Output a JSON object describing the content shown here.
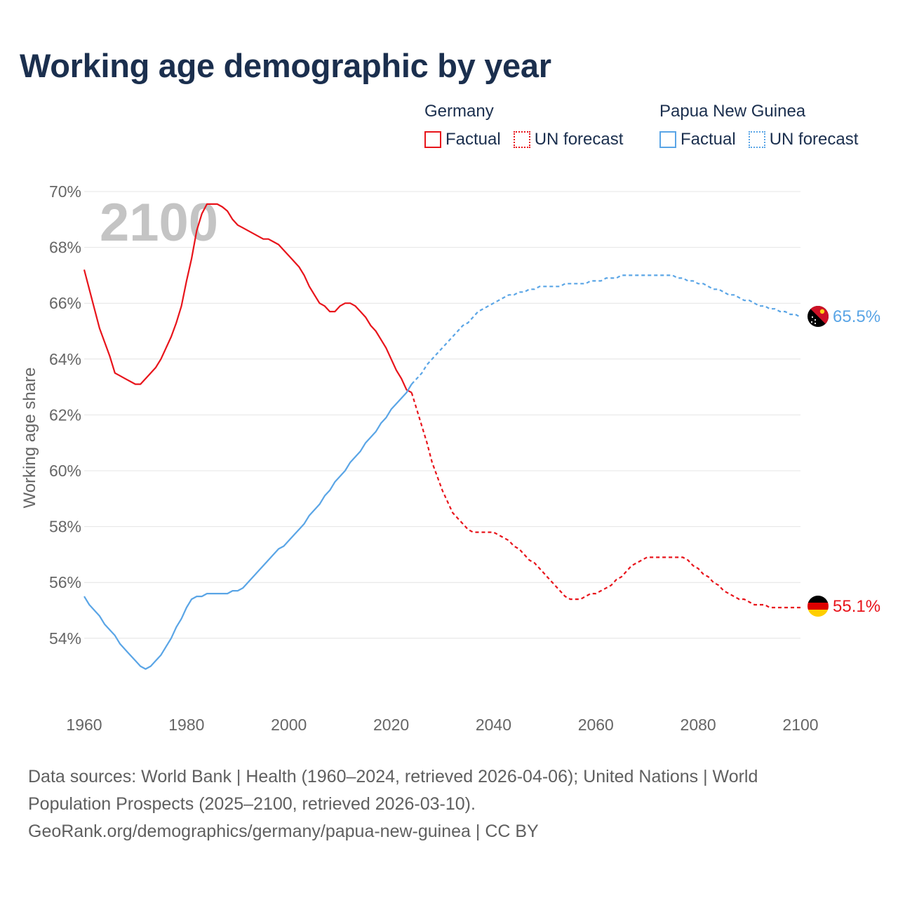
{
  "title": "Working age demographic by year",
  "legend": {
    "groups": [
      {
        "name": "Germany",
        "factual_label": "Factual",
        "forecast_label": "UN forecast"
      },
      {
        "name": "Papua New Guinea",
        "factual_label": "Factual",
        "forecast_label": "UN forecast"
      }
    ]
  },
  "watermark_year": "2100",
  "source": {
    "line1": "Data sources: World Bank | Health (1960–2024, retrieved 2026-04-06); United Nations | World",
    "line2": "Population Prospects (2025–2100, retrieved 2026-03-10).",
    "line3": "GeoRank.org/demographics/germany/papua-new-guinea | CC BY"
  },
  "chart_data": {
    "type": "line",
    "title": "Working age demographic by year",
    "xlabel": "",
    "ylabel": "Working age share",
    "xlim": [
      1960,
      2100
    ],
    "ylim": [
      52,
      70
    ],
    "x_ticks": [
      1960,
      1980,
      2000,
      2020,
      2040,
      2060,
      2080,
      2100
    ],
    "y_ticks": [
      54,
      56,
      58,
      60,
      62,
      64,
      66,
      68,
      70
    ],
    "y_tick_labels": [
      "54%",
      "56%",
      "58%",
      "60%",
      "62%",
      "64%",
      "66%",
      "68%",
      "70%"
    ],
    "grid": true,
    "factual_range": [
      1960,
      2024
    ],
    "forecast_range": [
      2024,
      2100
    ],
    "series": [
      {
        "name": "Germany",
        "color": "#e8141b",
        "end_label": "55.1%",
        "points": [
          [
            1960,
            67.2
          ],
          [
            1961,
            66.5
          ],
          [
            1962,
            65.8
          ],
          [
            1963,
            65.1
          ],
          [
            1964,
            64.6
          ],
          [
            1965,
            64.1
          ],
          [
            1966,
            63.5
          ],
          [
            1967,
            63.4
          ],
          [
            1968,
            63.3
          ],
          [
            1969,
            63.2
          ],
          [
            1970,
            63.1
          ],
          [
            1971,
            63.1
          ],
          [
            1972,
            63.3
          ],
          [
            1973,
            63.5
          ],
          [
            1974,
            63.7
          ],
          [
            1975,
            64.0
          ],
          [
            1976,
            64.4
          ],
          [
            1977,
            64.8
          ],
          [
            1978,
            65.3
          ],
          [
            1979,
            65.9
          ],
          [
            1980,
            66.8
          ],
          [
            1981,
            67.6
          ],
          [
            1982,
            68.6
          ],
          [
            1983,
            69.2
          ],
          [
            1984,
            69.55
          ],
          [
            1985,
            69.55
          ],
          [
            1986,
            69.55
          ],
          [
            1987,
            69.45
          ],
          [
            1988,
            69.3
          ],
          [
            1989,
            69.0
          ],
          [
            1990,
            68.8
          ],
          [
            1991,
            68.7
          ],
          [
            1992,
            68.6
          ],
          [
            1993,
            68.5
          ],
          [
            1994,
            68.4
          ],
          [
            1995,
            68.3
          ],
          [
            1996,
            68.3
          ],
          [
            1997,
            68.2
          ],
          [
            1998,
            68.1
          ],
          [
            1999,
            67.9
          ],
          [
            2000,
            67.7
          ],
          [
            2001,
            67.5
          ],
          [
            2002,
            67.3
          ],
          [
            2003,
            67.0
          ],
          [
            2004,
            66.6
          ],
          [
            2005,
            66.3
          ],
          [
            2006,
            66.0
          ],
          [
            2007,
            65.9
          ],
          [
            2008,
            65.7
          ],
          [
            2009,
            65.7
          ],
          [
            2010,
            65.9
          ],
          [
            2011,
            66.0
          ],
          [
            2012,
            66.0
          ],
          [
            2013,
            65.9
          ],
          [
            2014,
            65.7
          ],
          [
            2015,
            65.5
          ],
          [
            2016,
            65.2
          ],
          [
            2017,
            65.0
          ],
          [
            2018,
            64.7
          ],
          [
            2019,
            64.4
          ],
          [
            2020,
            64.0
          ],
          [
            2021,
            63.6
          ],
          [
            2022,
            63.3
          ],
          [
            2023,
            62.9
          ],
          [
            2024,
            62.8
          ],
          [
            2025,
            62.2
          ],
          [
            2026,
            61.6
          ],
          [
            2027,
            61.0
          ],
          [
            2028,
            60.3
          ],
          [
            2029,
            59.8
          ],
          [
            2030,
            59.3
          ],
          [
            2031,
            58.9
          ],
          [
            2032,
            58.5
          ],
          [
            2033,
            58.3
          ],
          [
            2034,
            58.1
          ],
          [
            2035,
            57.9
          ],
          [
            2036,
            57.8
          ],
          [
            2037,
            57.8
          ],
          [
            2038,
            57.8
          ],
          [
            2039,
            57.8
          ],
          [
            2040,
            57.8
          ],
          [
            2041,
            57.7
          ],
          [
            2042,
            57.6
          ],
          [
            2043,
            57.5
          ],
          [
            2044,
            57.3
          ],
          [
            2045,
            57.2
          ],
          [
            2046,
            57.0
          ],
          [
            2047,
            56.8
          ],
          [
            2048,
            56.7
          ],
          [
            2049,
            56.5
          ],
          [
            2050,
            56.3
          ],
          [
            2051,
            56.1
          ],
          [
            2052,
            55.9
          ],
          [
            2053,
            55.7
          ],
          [
            2054,
            55.5
          ],
          [
            2055,
            55.4
          ],
          [
            2056,
            55.4
          ],
          [
            2057,
            55.4
          ],
          [
            2058,
            55.5
          ],
          [
            2059,
            55.6
          ],
          [
            2060,
            55.6
          ],
          [
            2061,
            55.7
          ],
          [
            2062,
            55.8
          ],
          [
            2063,
            55.9
          ],
          [
            2064,
            56.1
          ],
          [
            2065,
            56.2
          ],
          [
            2066,
            56.4
          ],
          [
            2067,
            56.6
          ],
          [
            2068,
            56.7
          ],
          [
            2069,
            56.8
          ],
          [
            2070,
            56.9
          ],
          [
            2071,
            56.9
          ],
          [
            2072,
            56.9
          ],
          [
            2073,
            56.9
          ],
          [
            2074,
            56.9
          ],
          [
            2075,
            56.9
          ],
          [
            2076,
            56.9
          ],
          [
            2077,
            56.9
          ],
          [
            2078,
            56.8
          ],
          [
            2079,
            56.6
          ],
          [
            2080,
            56.5
          ],
          [
            2081,
            56.3
          ],
          [
            2082,
            56.2
          ],
          [
            2083,
            56.0
          ],
          [
            2084,
            55.9
          ],
          [
            2085,
            55.7
          ],
          [
            2086,
            55.6
          ],
          [
            2087,
            55.5
          ],
          [
            2088,
            55.4
          ],
          [
            2089,
            55.4
          ],
          [
            2090,
            55.3
          ],
          [
            2091,
            55.2
          ],
          [
            2092,
            55.2
          ],
          [
            2093,
            55.2
          ],
          [
            2094,
            55.1
          ],
          [
            2095,
            55.1
          ],
          [
            2096,
            55.1
          ],
          [
            2097,
            55.1
          ],
          [
            2098,
            55.1
          ],
          [
            2099,
            55.1
          ],
          [
            2100,
            55.1
          ]
        ]
      },
      {
        "name": "Papua New Guinea",
        "color": "#5aa5e6",
        "end_label": "65.5%",
        "points": [
          [
            1960,
            55.5
          ],
          [
            1961,
            55.2
          ],
          [
            1962,
            55.0
          ],
          [
            1963,
            54.8
          ],
          [
            1964,
            54.5
          ],
          [
            1965,
            54.3
          ],
          [
            1966,
            54.1
          ],
          [
            1967,
            53.8
          ],
          [
            1968,
            53.6
          ],
          [
            1969,
            53.4
          ],
          [
            1970,
            53.2
          ],
          [
            1971,
            53.0
          ],
          [
            1972,
            52.9
          ],
          [
            1973,
            53.0
          ],
          [
            1974,
            53.2
          ],
          [
            1975,
            53.4
          ],
          [
            1976,
            53.7
          ],
          [
            1977,
            54.0
          ],
          [
            1978,
            54.4
          ],
          [
            1979,
            54.7
          ],
          [
            1980,
            55.1
          ],
          [
            1981,
            55.4
          ],
          [
            1982,
            55.5
          ],
          [
            1983,
            55.5
          ],
          [
            1984,
            55.6
          ],
          [
            1985,
            55.6
          ],
          [
            1986,
            55.6
          ],
          [
            1987,
            55.6
          ],
          [
            1988,
            55.6
          ],
          [
            1989,
            55.7
          ],
          [
            1990,
            55.7
          ],
          [
            1991,
            55.8
          ],
          [
            1992,
            56.0
          ],
          [
            1993,
            56.2
          ],
          [
            1994,
            56.4
          ],
          [
            1995,
            56.6
          ],
          [
            1996,
            56.8
          ],
          [
            1997,
            57.0
          ],
          [
            1998,
            57.2
          ],
          [
            1999,
            57.3
          ],
          [
            2000,
            57.5
          ],
          [
            2001,
            57.7
          ],
          [
            2002,
            57.9
          ],
          [
            2003,
            58.1
          ],
          [
            2004,
            58.4
          ],
          [
            2005,
            58.6
          ],
          [
            2006,
            58.8
          ],
          [
            2007,
            59.1
          ],
          [
            2008,
            59.3
          ],
          [
            2009,
            59.6
          ],
          [
            2010,
            59.8
          ],
          [
            2011,
            60.0
          ],
          [
            2012,
            60.3
          ],
          [
            2013,
            60.5
          ],
          [
            2014,
            60.7
          ],
          [
            2015,
            61.0
          ],
          [
            2016,
            61.2
          ],
          [
            2017,
            61.4
          ],
          [
            2018,
            61.7
          ],
          [
            2019,
            61.9
          ],
          [
            2020,
            62.2
          ],
          [
            2021,
            62.4
          ],
          [
            2022,
            62.6
          ],
          [
            2023,
            62.8
          ],
          [
            2024,
            63.1
          ],
          [
            2025,
            63.3
          ],
          [
            2026,
            63.5
          ],
          [
            2027,
            63.8
          ],
          [
            2028,
            64.0
          ],
          [
            2029,
            64.2
          ],
          [
            2030,
            64.4
          ],
          [
            2031,
            64.6
          ],
          [
            2032,
            64.8
          ],
          [
            2033,
            65.0
          ],
          [
            2034,
            65.2
          ],
          [
            2035,
            65.3
          ],
          [
            2036,
            65.5
          ],
          [
            2037,
            65.7
          ],
          [
            2038,
            65.8
          ],
          [
            2039,
            65.9
          ],
          [
            2040,
            66.0
          ],
          [
            2041,
            66.1
          ],
          [
            2042,
            66.2
          ],
          [
            2043,
            66.3
          ],
          [
            2044,
            66.3
          ],
          [
            2045,
            66.4
          ],
          [
            2046,
            66.4
          ],
          [
            2047,
            66.5
          ],
          [
            2048,
            66.5
          ],
          [
            2049,
            66.6
          ],
          [
            2050,
            66.6
          ],
          [
            2051,
            66.6
          ],
          [
            2052,
            66.6
          ],
          [
            2053,
            66.6
          ],
          [
            2054,
            66.7
          ],
          [
            2055,
            66.7
          ],
          [
            2056,
            66.7
          ],
          [
            2057,
            66.7
          ],
          [
            2058,
            66.7
          ],
          [
            2059,
            66.8
          ],
          [
            2060,
            66.8
          ],
          [
            2061,
            66.8
          ],
          [
            2062,
            66.9
          ],
          [
            2063,
            66.9
          ],
          [
            2064,
            66.9
          ],
          [
            2065,
            67.0
          ],
          [
            2066,
            67.0
          ],
          [
            2067,
            67.0
          ],
          [
            2068,
            67.0
          ],
          [
            2069,
            67.0
          ],
          [
            2070,
            67.0
          ],
          [
            2071,
            67.0
          ],
          [
            2072,
            67.0
          ],
          [
            2073,
            67.0
          ],
          [
            2074,
            67.0
          ],
          [
            2075,
            67.0
          ],
          [
            2076,
            66.9
          ],
          [
            2077,
            66.9
          ],
          [
            2078,
            66.8
          ],
          [
            2079,
            66.8
          ],
          [
            2080,
            66.7
          ],
          [
            2081,
            66.7
          ],
          [
            2082,
            66.6
          ],
          [
            2083,
            66.5
          ],
          [
            2084,
            66.5
          ],
          [
            2085,
            66.4
          ],
          [
            2086,
            66.3
          ],
          [
            2087,
            66.3
          ],
          [
            2088,
            66.2
          ],
          [
            2089,
            66.1
          ],
          [
            2090,
            66.1
          ],
          [
            2091,
            66.0
          ],
          [
            2092,
            65.9
          ],
          [
            2093,
            65.9
          ],
          [
            2094,
            65.8
          ],
          [
            2095,
            65.8
          ],
          [
            2096,
            65.7
          ],
          [
            2097,
            65.7
          ],
          [
            2098,
            65.6
          ],
          [
            2099,
            65.6
          ],
          [
            2100,
            65.5
          ]
        ]
      }
    ]
  }
}
